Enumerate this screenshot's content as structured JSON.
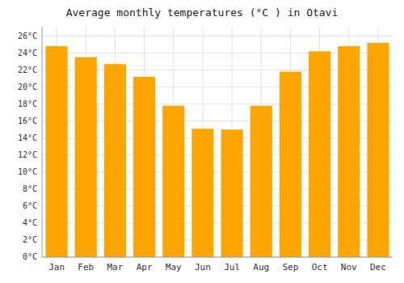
{
  "chart_data": {
    "type": "bar",
    "title": "Average monthly temperatures (°C ) in Otavi",
    "categories": [
      "Jan",
      "Feb",
      "Mar",
      "Apr",
      "May",
      "Jun",
      "Jul",
      "Aug",
      "Sep",
      "Oct",
      "Nov",
      "Dec"
    ],
    "values": [
      24.8,
      23.5,
      22.7,
      21.2,
      17.8,
      15.1,
      15.0,
      17.8,
      21.8,
      24.2,
      24.8,
      25.2
    ],
    "color": "#FFA500",
    "ylim": [
      0,
      27
    ],
    "yticks": [
      {
        "value": 0,
        "label": "0°C"
      },
      {
        "value": 2,
        "label": "2°C"
      },
      {
        "value": 4,
        "label": "4°C"
      },
      {
        "value": 6,
        "label": "6°C"
      },
      {
        "value": 8,
        "label": "8°C"
      },
      {
        "value": 10,
        "label": "10°C"
      },
      {
        "value": 12,
        "label": "12°C"
      },
      {
        "value": 14,
        "label": "14°C"
      },
      {
        "value": 16,
        "label": "16°C"
      },
      {
        "value": 18,
        "label": "18°C"
      },
      {
        "value": 20,
        "label": "20°C"
      },
      {
        "value": 22,
        "label": "22°C"
      },
      {
        "value": 24,
        "label": "24°C"
      },
      {
        "value": 26,
        "label": "26°C"
      }
    ],
    "grid": true
  }
}
